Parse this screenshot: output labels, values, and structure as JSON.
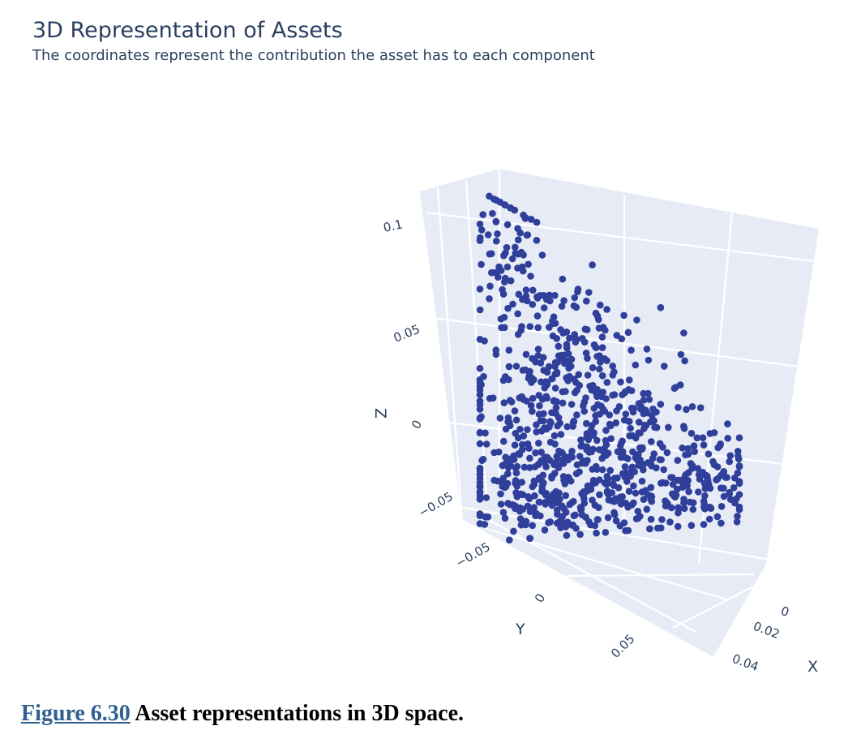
{
  "header": {
    "title": "3D Representation of Assets",
    "subtitle": "The coordinates represent the contribution the asset has to each component"
  },
  "caption": {
    "figure_label": "Figure 6.30",
    "text": "Asset representations in 3D space."
  },
  "colors": {
    "marker": "#2f3f9a",
    "pane": "#e6ebf6",
    "grid": "#ffffff",
    "text": "#2a3f5f",
    "caption_link": "#2f6090"
  },
  "chart_data": {
    "type": "scatter",
    "title": "3D Representation of Assets",
    "subtitle": "The coordinates represent the contribution the asset has to each component",
    "dimensions": 3,
    "axes": {
      "x": {
        "label": "X",
        "ticks": [
          "0",
          "0.02",
          "0.04"
        ],
        "range": [
          0,
          0.045
        ]
      },
      "y": {
        "label": "Y",
        "ticks": [
          "−0.05",
          "0",
          "0.05"
        ],
        "range": [
          -0.075,
          0.075
        ]
      },
      "z": {
        "label": "Z",
        "ticks": [
          "−0.05",
          "0",
          "0.05",
          "0.1"
        ],
        "range": [
          -0.07,
          0.11
        ]
      }
    },
    "grid": true,
    "legend": "none",
    "marker_color": "#2f3f9a",
    "approx_point_count": 900,
    "points_sample": [
      {
        "x": 0.01,
        "y": -0.06,
        "z": 0.105
      },
      {
        "x": 0.012,
        "y": -0.055,
        "z": 0.085
      },
      {
        "x": 0.02,
        "y": -0.04,
        "z": 0.07
      },
      {
        "x": 0.015,
        "y": -0.05,
        "z": 0.055
      },
      {
        "x": 0.02,
        "y": -0.02,
        "z": 0.04
      },
      {
        "x": 0.015,
        "y": -0.01,
        "z": 0.02
      },
      {
        "x": 0.025,
        "y": 0.0,
        "z": 0.0
      },
      {
        "x": 0.02,
        "y": 0.02,
        "z": -0.01
      },
      {
        "x": 0.03,
        "y": 0.04,
        "z": -0.03
      },
      {
        "x": 0.035,
        "y": 0.06,
        "z": -0.04
      },
      {
        "x": 0.02,
        "y": -0.03,
        "z": -0.04
      },
      {
        "x": 0.015,
        "y": -0.05,
        "z": -0.01
      },
      {
        "x": 0.025,
        "y": 0.01,
        "z": -0.05
      },
      {
        "x": 0.03,
        "y": 0.05,
        "z": -0.02
      }
    ]
  }
}
